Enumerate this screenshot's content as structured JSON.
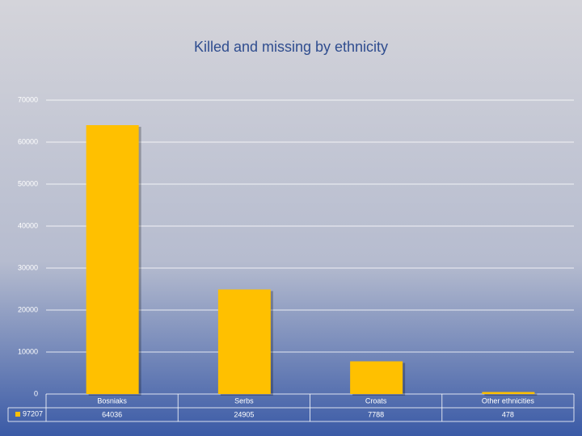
{
  "chart_data": {
    "type": "bar",
    "title": "Killed and missing by ethnicity",
    "categories": [
      "Bosniaks",
      "Serbs",
      "Croats",
      "Other ethnicities"
    ],
    "series": [
      {
        "name": "97207",
        "color": "#ffc000",
        "values": [
          64036,
          24905,
          7788,
          478
        ]
      }
    ],
    "ylim": [
      0,
      70000
    ],
    "yticks": [
      0,
      10000,
      20000,
      30000,
      40000,
      50000,
      60000,
      70000
    ],
    "grid": true,
    "legend": "bottom-left"
  }
}
